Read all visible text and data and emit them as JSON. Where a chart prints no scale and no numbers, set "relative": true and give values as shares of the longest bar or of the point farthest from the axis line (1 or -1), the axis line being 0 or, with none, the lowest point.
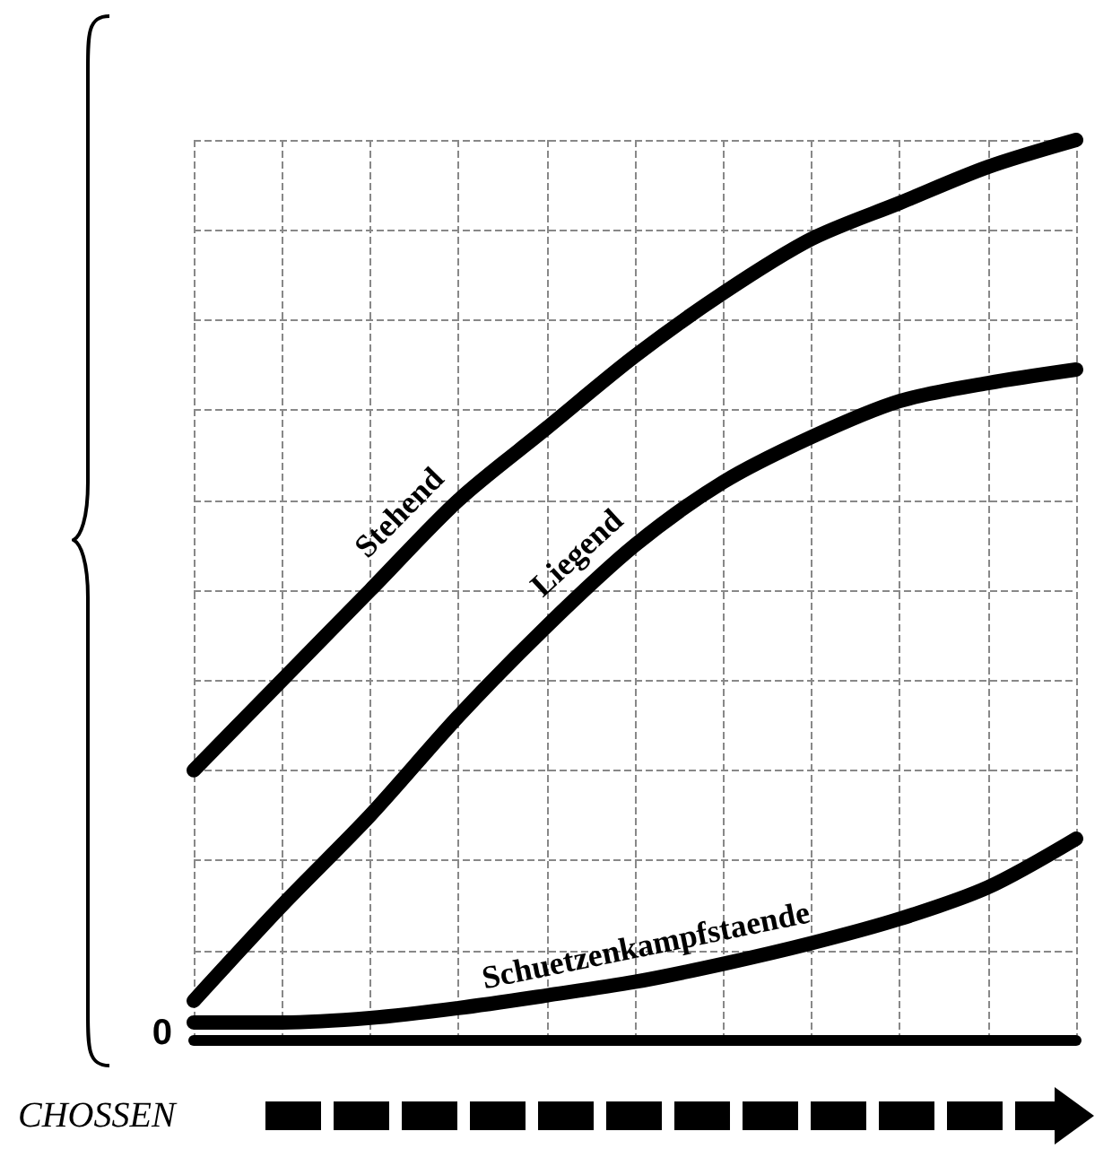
{
  "chart_data": {
    "type": "line",
    "relative": true,
    "xlabel": "CHOSSEN",
    "grid": true,
    "annotations": [
      "0"
    ],
    "categories": [
      null,
      null,
      null,
      null,
      null,
      null,
      null,
      null,
      null,
      null,
      null
    ],
    "series": [
      {
        "name": "Stehend",
        "color": "#000000",
        "values": [
          0.3,
          0.4,
          0.5,
          0.6,
          0.68,
          0.76,
          0.83,
          0.89,
          0.93,
          0.97,
          1.0
        ]
      },
      {
        "name": "Liegend",
        "color": "#000000",
        "values": [
          0.044,
          0.15,
          0.25,
          0.36,
          0.46,
          0.55,
          0.62,
          0.67,
          0.71,
          0.73,
          0.745
        ]
      },
      {
        "name": "Schuetzenkampfstaende",
        "color": "#000000",
        "values": [
          0.02,
          0.02,
          0.025,
          0.036,
          0.05,
          0.065,
          0.085,
          0.108,
          0.135,
          0.17,
          0.224
        ]
      }
    ]
  }
}
